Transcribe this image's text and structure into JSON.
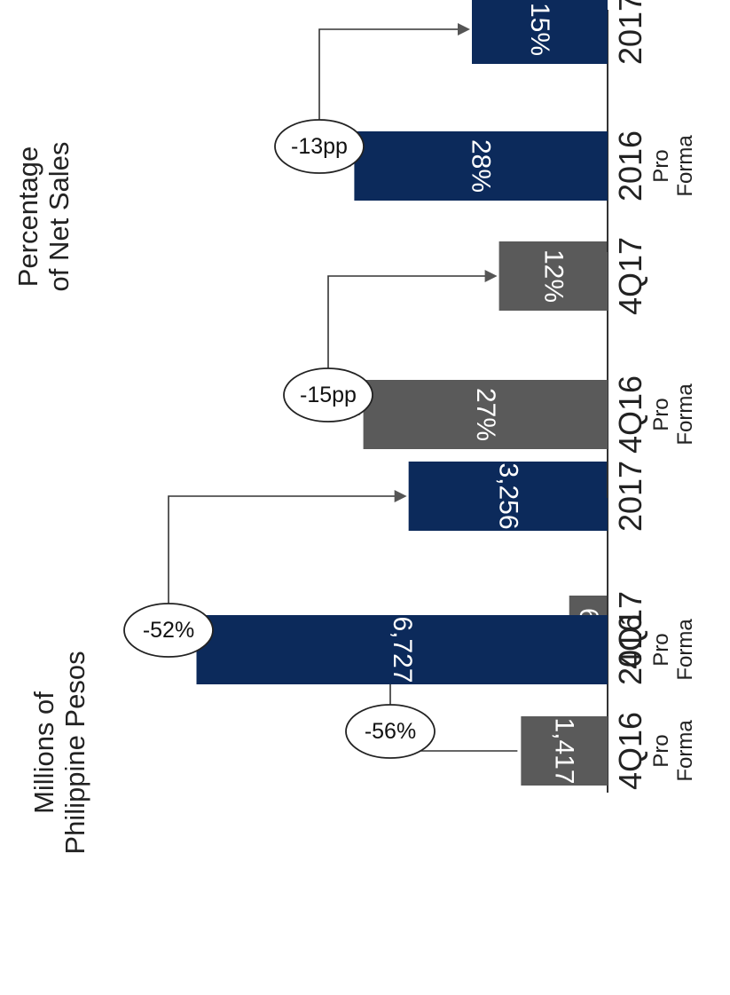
{
  "chart_data": [
    {
      "type": "bar",
      "title": "Millions of Philippine Pesos",
      "categories": [
        "4Q16 Pro Forma",
        "4Q17"
      ],
      "category_main": [
        "4Q16",
        "4Q17"
      ],
      "category_sub": [
        "Pro Forma",
        ""
      ],
      "values": [
        1417,
        628
      ],
      "value_labels": [
        "1,417",
        "628"
      ],
      "change_label": "-56%",
      "bar_color": "#5a5a5a",
      "ylim": [
        0,
        7000
      ]
    },
    {
      "type": "bar",
      "title": "",
      "categories": [
        "2016 Pro Forma",
        "2017"
      ],
      "category_main": [
        "2016",
        "2017"
      ],
      "category_sub": [
        "Pro Forma",
        ""
      ],
      "values": [
        6727,
        3256
      ],
      "value_labels": [
        "6,727",
        "3,256"
      ],
      "change_label": "-52%",
      "bar_color": "#0c2a5b",
      "ylim": [
        0,
        7000
      ]
    },
    {
      "type": "bar",
      "title": "Percentage of Net Sales",
      "categories": [
        "4Q16 Pro Forma",
        "4Q17"
      ],
      "category_main": [
        "4Q16",
        "4Q17"
      ],
      "category_sub": [
        "Pro Forma",
        ""
      ],
      "values": [
        27,
        12
      ],
      "value_labels": [
        "27%",
        "12%"
      ],
      "change_label": "-15pp",
      "bar_color": "#5a5a5a",
      "ylim": [
        0,
        30
      ]
    },
    {
      "type": "bar",
      "title": "",
      "categories": [
        "2016 Pro Forma",
        "2017"
      ],
      "category_main": [
        "2016",
        "2017"
      ],
      "category_sub": [
        "Pro Forma",
        ""
      ],
      "values": [
        28,
        15
      ],
      "value_labels": [
        "28%",
        "15%"
      ],
      "change_label": "-13pp",
      "bar_color": "#0c2a5b",
      "ylim": [
        0,
        30
      ]
    }
  ],
  "section_titles": {
    "pesos_line1": "Millions of",
    "pesos_line2": "Philippine Pesos",
    "pct_line1": "Percentage",
    "pct_line2": "of Net Sales"
  }
}
